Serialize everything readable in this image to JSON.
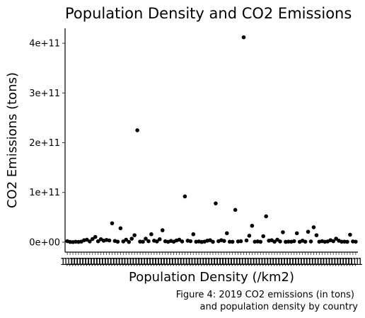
{
  "chart_data": {
    "type": "scatter",
    "title": "Population Density and CO2 Emissions",
    "xlabel": "Population Density (/km2)",
    "ylabel": "CO2 Emissions (tons)",
    "ylim": [
      -20000000000,
      430000000000
    ],
    "y_ticks": [
      {
        "value": 0,
        "label": "0e+00"
      },
      {
        "value": 100000000000,
        "label": "1e+11"
      },
      {
        "value": 200000000000,
        "label": "2e+11"
      },
      {
        "value": 300000000000,
        "label": "3e+11"
      },
      {
        "value": 400000000000,
        "label": "4e+11"
      }
    ],
    "x_tick_labels_note": "",
    "x_tick_label_sample": "1,1",
    "grid": false,
    "legend": "none",
    "caption_line1": "Figure 4: 2019 CO2 emissions (in tons)",
    "caption_line2": "and population density by country",
    "point_color": "#000000",
    "points": [
      {
        "x": 1,
        "y": 2000000000
      },
      {
        "x": 2,
        "y": 500000000
      },
      {
        "x": 3,
        "y": 300000000
      },
      {
        "x": 4,
        "y": 900000000
      },
      {
        "x": 5,
        "y": 600000000
      },
      {
        "x": 6,
        "y": 1200000000
      },
      {
        "x": 7,
        "y": 4000000000
      },
      {
        "x": 8,
        "y": 5000000000
      },
      {
        "x": 9,
        "y": 1500000000
      },
      {
        "x": 10,
        "y": 6500000000
      },
      {
        "x": 11,
        "y": 10500000000
      },
      {
        "x": 12,
        "y": 1800000000
      },
      {
        "x": 13,
        "y": 6000000000
      },
      {
        "x": 14,
        "y": 3000000000
      },
      {
        "x": 15,
        "y": 4500000000
      },
      {
        "x": 16,
        "y": 3500000000
      },
      {
        "x": 17,
        "y": 38000000000
      },
      {
        "x": 18,
        "y": 2500000000
      },
      {
        "x": 19,
        "y": 1000000000
      },
      {
        "x": 20,
        "y": 28000000000
      },
      {
        "x": 21,
        "y": 1500000000
      },
      {
        "x": 22,
        "y": 5000000000
      },
      {
        "x": 23,
        "y": 500000000
      },
      {
        "x": 24,
        "y": 7000000000
      },
      {
        "x": 25,
        "y": 14000000000
      },
      {
        "x": 26,
        "y": 225000000000
      },
      {
        "x": 27,
        "y": 1200000000
      },
      {
        "x": 28,
        "y": 1000000000
      },
      {
        "x": 29,
        "y": 7000000000
      },
      {
        "x": 30,
        "y": 2000000000
      },
      {
        "x": 31,
        "y": 16000000000
      },
      {
        "x": 32,
        "y": 3000000000
      },
      {
        "x": 33,
        "y": 1500000000
      },
      {
        "x": 34,
        "y": 6000000000
      },
      {
        "x": 35,
        "y": 24000000000
      },
      {
        "x": 36,
        "y": 1800000000
      },
      {
        "x": 37,
        "y": 800000000
      },
      {
        "x": 38,
        "y": 2500000000
      },
      {
        "x": 39,
        "y": 1000000000
      },
      {
        "x": 40,
        "y": 3500000000
      },
      {
        "x": 41,
        "y": 5000000000
      },
      {
        "x": 42,
        "y": 1500000000
      },
      {
        "x": 43,
        "y": 92000000000
      },
      {
        "x": 44,
        "y": 3000000000
      },
      {
        "x": 45,
        "y": 2000000000
      },
      {
        "x": 46,
        "y": 16000000000
      },
      {
        "x": 47,
        "y": 900000000
      },
      {
        "x": 48,
        "y": 1500000000
      },
      {
        "x": 49,
        "y": 500000000
      },
      {
        "x": 50,
        "y": 1200000000
      },
      {
        "x": 51,
        "y": 3000000000
      },
      {
        "x": 52,
        "y": 4000000000
      },
      {
        "x": 53,
        "y": 800000000
      },
      {
        "x": 54,
        "y": 78000000000
      },
      {
        "x": 55,
        "y": 2000000000
      },
      {
        "x": 56,
        "y": 4000000000
      },
      {
        "x": 57,
        "y": 2500000000
      },
      {
        "x": 58,
        "y": 18000000000
      },
      {
        "x": 59,
        "y": 1000000000
      },
      {
        "x": 60,
        "y": 800000000
      },
      {
        "x": 61,
        "y": 65000000000
      },
      {
        "x": 62,
        "y": 1500000000
      },
      {
        "x": 63,
        "y": 2000000000
      },
      {
        "x": 64,
        "y": 412000000000
      },
      {
        "x": 65,
        "y": 3500000000
      },
      {
        "x": 66,
        "y": 13000000000
      },
      {
        "x": 67,
        "y": 33000000000
      },
      {
        "x": 68,
        "y": 1000000000
      },
      {
        "x": 69,
        "y": 1500000000
      },
      {
        "x": 70,
        "y": 800000000
      },
      {
        "x": 71,
        "y": 12000000000
      },
      {
        "x": 72,
        "y": 52000000000
      },
      {
        "x": 73,
        "y": 3000000000
      },
      {
        "x": 74,
        "y": 4000000000
      },
      {
        "x": 75,
        "y": 1000000000
      },
      {
        "x": 76,
        "y": 5000000000
      },
      {
        "x": 77,
        "y": 1500000000
      },
      {
        "x": 78,
        "y": 20000000000
      },
      {
        "x": 79,
        "y": 700000000
      },
      {
        "x": 80,
        "y": 1200000000
      },
      {
        "x": 81,
        "y": 900000000
      },
      {
        "x": 82,
        "y": 2000000000
      },
      {
        "x": 83,
        "y": 18000000000
      },
      {
        "x": 84,
        "y": 800000000
      },
      {
        "x": 85,
        "y": 3000000000
      },
      {
        "x": 86,
        "y": 1000000000
      },
      {
        "x": 87,
        "y": 21000000000
      },
      {
        "x": 88,
        "y": 1500000000
      },
      {
        "x": 89,
        "y": 30000000000
      },
      {
        "x": 90,
        "y": 14000000000
      },
      {
        "x": 91,
        "y": 1000000000
      },
      {
        "x": 92,
        "y": 2000000000
      },
      {
        "x": 93,
        "y": 800000000
      },
      {
        "x": 94,
        "y": 1500000000
      },
      {
        "x": 95,
        "y": 4000000000
      },
      {
        "x": 96,
        "y": 2000000000
      },
      {
        "x": 97,
        "y": 7000000000
      },
      {
        "x": 98,
        "y": 3000000000
      },
      {
        "x": 99,
        "y": 1000000000
      },
      {
        "x": 100,
        "y": 1200000000
      },
      {
        "x": 101,
        "y": 800000000
      },
      {
        "x": 102,
        "y": 15000000000
      },
      {
        "x": 103,
        "y": 1500000000
      },
      {
        "x": 104,
        "y": 1000000000
      }
    ]
  }
}
